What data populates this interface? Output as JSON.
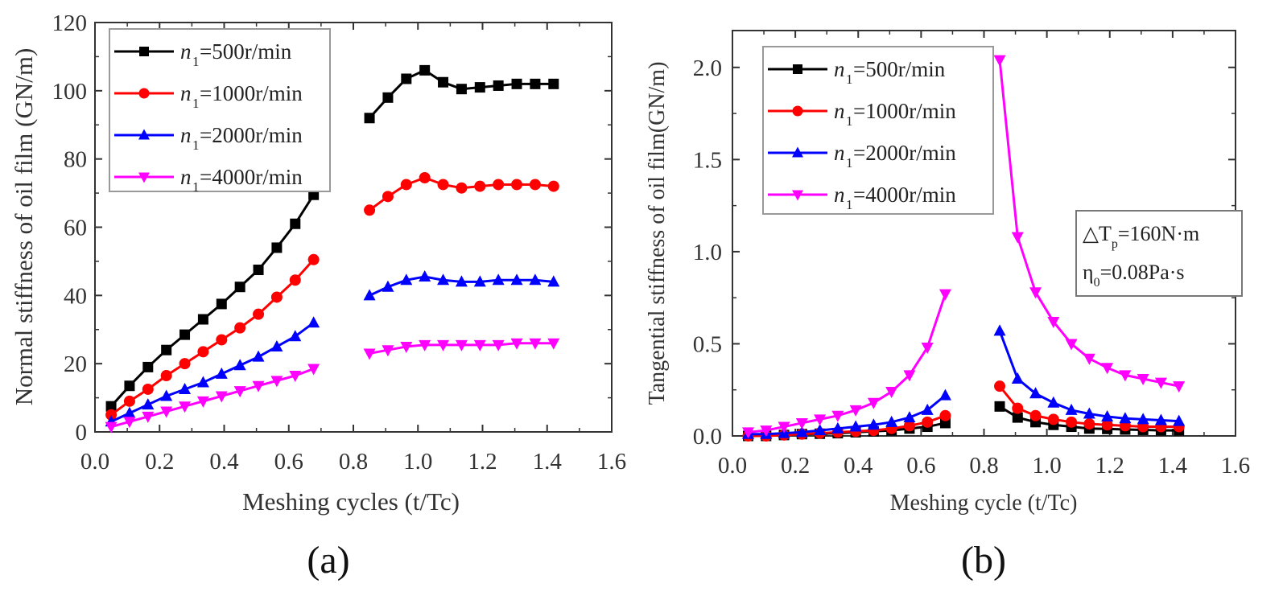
{
  "chart_data": [
    {
      "type": "line",
      "panel_label": "(a)",
      "title": "",
      "xlabel": "Meshing cycles (t/Tc)",
      "ylabel": "Normal stiffness of oil film (GN/m)",
      "xlim": [
        0.0,
        1.6
      ],
      "ylim": [
        0,
        120
      ],
      "xticks": [
        "0.0",
        "0.2",
        "0.4",
        "0.6",
        "0.8",
        "1.0",
        "1.2",
        "1.4",
        "1.6"
      ],
      "yticks": [
        "0",
        "20",
        "40",
        "60",
        "80",
        "100",
        "120"
      ],
      "grid": false,
      "legend_position": "top-left",
      "x_segments": [
        [
          0.05,
          0.107,
          0.164,
          0.221,
          0.278,
          0.335,
          0.392,
          0.449,
          0.506,
          0.563,
          0.62,
          0.677
        ],
        [
          0.85,
          0.907,
          0.964,
          1.021,
          1.078,
          1.135,
          1.192,
          1.249,
          1.306,
          1.363,
          1.42
        ]
      ],
      "series": [
        {
          "name": "n1=500r/min",
          "color": "#000000",
          "marker": "square",
          "values": [
            [
              7.5,
              13.5,
              19,
              24,
              28.5,
              33,
              37.5,
              42.5,
              47.5,
              54,
              61,
              69.5
            ],
            [
              92,
              98,
              103.5,
              106,
              102.5,
              100.5,
              101,
              101.5,
              102,
              102,
              102
            ]
          ]
        },
        {
          "name": "n1=1000r/min",
          "color": "#ff0000",
          "marker": "circle",
          "values": [
            [
              5,
              9,
              12.5,
              16.5,
              20,
              23.5,
              27,
              30.5,
              34.5,
              39.5,
              44.5,
              50.5
            ],
            [
              65,
              69,
              72.5,
              74.5,
              72.5,
              71.5,
              72,
              72.5,
              72.5,
              72.5,
              72
            ]
          ]
        },
        {
          "name": "n1=2000r/min",
          "color": "#0000ff",
          "marker": "triangle-up",
          "values": [
            [
              3,
              5.5,
              8,
              10.5,
              12.5,
              14.5,
              17,
              19.5,
              22,
              25,
              28,
              32
            ],
            [
              40,
              42.5,
              44.5,
              45.5,
              44.5,
              44,
              44,
              44.5,
              44.5,
              44.5,
              44
            ]
          ]
        },
        {
          "name": "n1=4000r/min",
          "color": "#ff00ff",
          "marker": "triangle-down",
          "values": [
            [
              1.5,
              3,
              4.5,
              6,
              7.5,
              9,
              10.5,
              12,
              13.5,
              15,
              16.5,
              18.5
            ],
            [
              23,
              24,
              25,
              25.5,
              25.5,
              25.5,
              25.5,
              25.5,
              26,
              26,
              26
            ]
          ]
        }
      ]
    },
    {
      "type": "line",
      "panel_label": "(b)",
      "title": "",
      "xlabel": "Meshing cycle (t/Tc)",
      "ylabel": "Tangential stiffness of oil film(GN/m)",
      "xlim": [
        0.0,
        1.6
      ],
      "ylim": [
        0.0,
        2.2
      ],
      "xticks": [
        "0.0",
        "0.2",
        "0.4",
        "0.6",
        "0.8",
        "1.0",
        "1.2",
        "1.4",
        "1.6"
      ],
      "yticks": [
        "0.0",
        "0.5",
        "1.0",
        "1.5",
        "2.0"
      ],
      "grid": false,
      "legend_position": "top-left",
      "annotation": {
        "line1_prefix": "△T",
        "line1_sub": "p",
        "line1_suffix": "=160N·m",
        "line2_prefix": "η",
        "line2_sub": "0",
        "line2_suffix": "=0.08Pa·s"
      },
      "x_segments": [
        [
          0.05,
          0.107,
          0.164,
          0.221,
          0.278,
          0.335,
          0.392,
          0.449,
          0.506,
          0.563,
          0.62,
          0.677
        ],
        [
          0.85,
          0.907,
          0.964,
          1.021,
          1.078,
          1.135,
          1.192,
          1.249,
          1.306,
          1.363,
          1.42
        ]
      ],
      "series": [
        {
          "name": "n1=500r/min",
          "color": "#000000",
          "marker": "square",
          "values": [
            [
              0.0,
              0.0,
              0.005,
              0.01,
              0.012,
              0.015,
              0.02,
              0.025,
              0.03,
              0.04,
              0.05,
              0.07
            ],
            [
              0.16,
              0.1,
              0.075,
              0.06,
              0.05,
              0.04,
              0.038,
              0.035,
              0.033,
              0.03,
              0.03
            ]
          ]
        },
        {
          "name": "n1=1000r/min",
          "color": "#ff0000",
          "marker": "circle",
          "values": [
            [
              0.0,
              0.0,
              0.005,
              0.01,
              0.015,
              0.02,
              0.025,
              0.03,
              0.04,
              0.055,
              0.075,
              0.11
            ],
            [
              0.27,
              0.15,
              0.11,
              0.09,
              0.075,
              0.065,
              0.06,
              0.055,
              0.05,
              0.05,
              0.05
            ]
          ]
        },
        {
          "name": "n1=2000r/min",
          "color": "#0000ff",
          "marker": "triangle-up",
          "values": [
            [
              0.01,
              0.01,
              0.015,
              0.02,
              0.03,
              0.04,
              0.05,
              0.06,
              0.075,
              0.1,
              0.14,
              0.22
            ],
            [
              0.57,
              0.31,
              0.23,
              0.18,
              0.14,
              0.12,
              0.105,
              0.095,
              0.09,
              0.085,
              0.08
            ]
          ]
        },
        {
          "name": "n1=4000r/min",
          "color": "#ff00ff",
          "marker": "triangle-down",
          "values": [
            [
              0.02,
              0.03,
              0.05,
              0.07,
              0.09,
              0.11,
              0.14,
              0.18,
              0.24,
              0.33,
              0.48,
              0.77
            ],
            [
              2.04,
              1.08,
              0.78,
              0.62,
              0.5,
              0.42,
              0.37,
              0.33,
              0.31,
              0.29,
              0.27
            ]
          ]
        }
      ]
    }
  ]
}
